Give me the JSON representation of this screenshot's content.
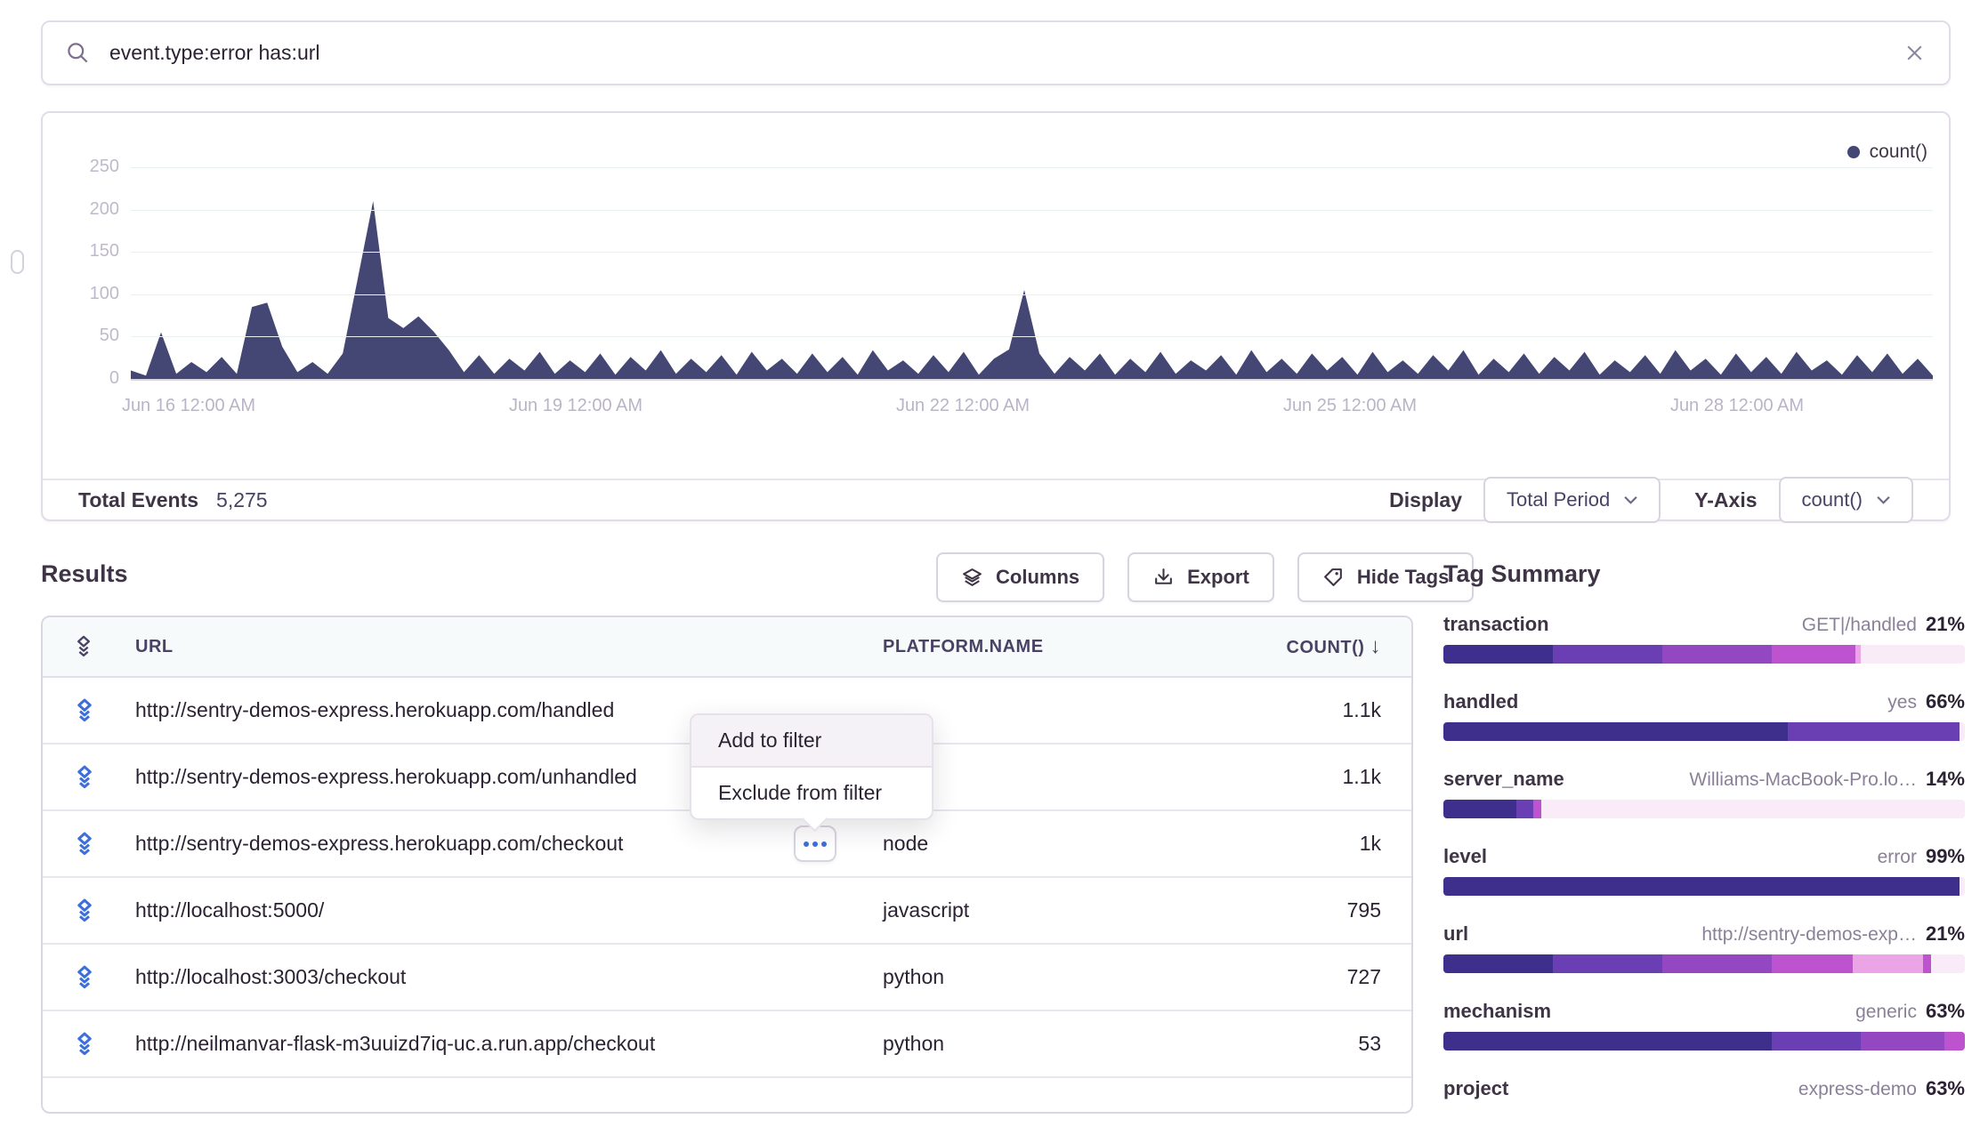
{
  "search": {
    "value": "event.type:error has:url"
  },
  "chart": {
    "legend_label": "count()",
    "total_events_label": "Total Events",
    "total_events_value": "5,275",
    "display_label": "Display",
    "display_value": "Total Period",
    "yaxis_label": "Y-Axis",
    "yaxis_value": "count()"
  },
  "chart_data": {
    "type": "area",
    "title": "",
    "xlabel": "",
    "ylabel": "",
    "ylim": [
      0,
      250
    ],
    "y_ticks": [
      0,
      50,
      100,
      150,
      200,
      250
    ],
    "x_ticks": [
      "Jun 16 12:00 AM",
      "Jun 19 12:00 AM",
      "Jun 22 12:00 AM",
      "Jun 25 12:00 AM",
      "Jun 28 12:00 AM"
    ],
    "legend": [
      "count()"
    ],
    "legend_position": "top-right",
    "grid": true,
    "color": "#444674",
    "series": [
      {
        "name": "count()",
        "values": [
          10,
          4,
          55,
          6,
          20,
          8,
          26,
          6,
          85,
          90,
          38,
          8,
          20,
          6,
          30,
          120,
          210,
          72,
          60,
          74,
          56,
          34,
          8,
          28,
          6,
          24,
          10,
          32,
          6,
          22,
          8,
          30,
          5,
          26,
          10,
          34,
          6,
          24,
          8,
          28,
          5,
          32,
          10,
          24,
          6,
          30,
          8,
          26,
          5,
          34,
          10,
          22,
          6,
          28,
          8,
          32,
          5,
          24,
          35,
          105,
          30,
          6,
          26,
          10,
          30,
          5,
          24,
          8,
          32,
          6,
          22,
          10,
          28,
          5,
          34,
          8,
          24,
          6,
          30,
          10,
          26,
          5,
          32,
          8,
          22,
          6,
          28,
          10,
          34,
          5,
          24,
          8,
          30,
          6,
          26,
          10,
          32,
          5,
          22,
          8,
          28,
          6,
          34,
          10,
          24,
          5,
          30,
          8,
          26,
          6,
          32,
          10,
          22,
          5,
          28,
          8,
          30,
          6,
          24,
          4
        ]
      }
    ]
  },
  "results": {
    "title": "Results",
    "buttons": [
      {
        "label": "Columns",
        "icon": "layers-icon"
      },
      {
        "label": "Export",
        "icon": "download-icon"
      },
      {
        "label": "Hide Tags",
        "icon": "tag-icon"
      }
    ],
    "table": {
      "columns": [
        "URL",
        "PLATFORM.NAME",
        "COUNT()"
      ],
      "sort": {
        "column": "COUNT()",
        "direction": "desc"
      },
      "rows": [
        {
          "url": "http://sentry-demos-express.herokuapp.com/handled",
          "platform": "",
          "count": "1.1k",
          "menu_button": false
        },
        {
          "url": "http://sentry-demos-express.herokuapp.com/unhandled",
          "platform": "",
          "count": "1.1k",
          "menu_button": false
        },
        {
          "url": "http://sentry-demos-express.herokuapp.com/checkout",
          "platform": "node",
          "count": "1k",
          "menu_button": true
        },
        {
          "url": "http://localhost:5000/",
          "platform": "javascript",
          "count": "795",
          "menu_button": false
        },
        {
          "url": "http://localhost:3003/checkout",
          "platform": "python",
          "count": "727",
          "menu_button": false
        },
        {
          "url": "http://neilmanvar-flask-m3uuizd7iq-uc.a.run.app/checkout",
          "platform": "python",
          "count": "53",
          "menu_button": false
        }
      ]
    }
  },
  "context_menu": {
    "items": [
      "Add to filter",
      "Exclude from filter"
    ],
    "highlighted": "Add to filter"
  },
  "tag_summary": {
    "title": "Tag Summary",
    "colors": {
      "s1": "#3E2F8D",
      "s2": "#6A3FB3",
      "s3": "#9347C1",
      "s4": "#BD53CF",
      "s5": "#EBA4E6",
      "light": "#FAEBF8"
    },
    "items": [
      {
        "name": "transaction",
        "value": "GET|/handled",
        "percent": "21%",
        "segments": [
          [
            21,
            "s1"
          ],
          [
            21,
            "s2"
          ],
          [
            21,
            "s3"
          ],
          [
            16,
            "s4"
          ],
          [
            1,
            "s5"
          ],
          [
            20,
            "light"
          ]
        ]
      },
      {
        "name": "handled",
        "value": "yes",
        "percent": "66%",
        "segments": [
          [
            66,
            "s1"
          ],
          [
            33,
            "s2"
          ],
          [
            1,
            "light"
          ]
        ]
      },
      {
        "name": "server_name",
        "value": "Williams-MacBook-Pro.lo…",
        "percent": "14%",
        "segments": [
          [
            14,
            "s1"
          ],
          [
            3.2,
            "s2"
          ],
          [
            1.6,
            "s4"
          ],
          [
            81.2,
            "light"
          ]
        ]
      },
      {
        "name": "level",
        "value": "error",
        "percent": "99%",
        "segments": [
          [
            99,
            "s1"
          ],
          [
            1,
            "light"
          ]
        ]
      },
      {
        "name": "url",
        "value": "http://sentry-demos-exp…",
        "percent": "21%",
        "segments": [
          [
            21,
            "s1"
          ],
          [
            21,
            "s2"
          ],
          [
            21,
            "s3"
          ],
          [
            15.5,
            "s4"
          ],
          [
            13.5,
            "s5"
          ],
          [
            1.5,
            "s4"
          ],
          [
            6.5,
            "light"
          ]
        ]
      },
      {
        "name": "mechanism",
        "value": "generic",
        "percent": "63%",
        "segments": [
          [
            63,
            "s1"
          ],
          [
            17,
            "s2"
          ],
          [
            16,
            "s3"
          ],
          [
            4,
            "s4"
          ]
        ]
      },
      {
        "name": "project",
        "value": "express-demo",
        "percent": "63%",
        "segments": []
      }
    ]
  }
}
